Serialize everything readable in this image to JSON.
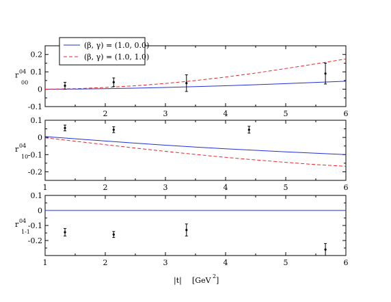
{
  "chart_data": {
    "type": "line",
    "x_axis_label": {
      "main": "|t|",
      "unit_before": "[GeV",
      "unit_sup": "2",
      "unit_after": "]"
    },
    "legend": [
      {
        "label": "(β, γ) = (1.0, 0.0)",
        "color": "#1f2fd6",
        "dash": "solid"
      },
      {
        "label": "(β, γ) = (1.0, 1.0)",
        "color": "#e8262a",
        "dash": "dashed"
      }
    ],
    "panels": [
      {
        "ylabel": {
          "main": "r",
          "sup": "04",
          "sub": "00"
        },
        "xlim": [
          1,
          6
        ],
        "ylim": [
          -0.1,
          0.25
        ],
        "xticks": [
          1,
          2,
          3,
          4,
          5,
          6
        ],
        "xtick_labels": [
          "",
          "2",
          "3",
          "4",
          "5",
          "6"
        ],
        "yticks": [
          -0.1,
          0,
          0.1,
          0.2
        ],
        "ytick_labels": [
          "-0.1",
          "0",
          "0.1",
          "0.2"
        ],
        "series": [
          {
            "color": "#1f2fd6",
            "dash": "solid",
            "x": [
              1,
              1.5,
              2,
              2.5,
              3,
              3.5,
              4,
              4.5,
              5,
              5.5,
              6
            ],
            "y": [
              0,
              0.001,
              0.003,
              0.006,
              0.01,
              0.015,
              0.02,
              0.026,
              0.032,
              0.039,
              0.046
            ]
          },
          {
            "color": "#e8262a",
            "dash": "dashed",
            "x": [
              1,
              1.5,
              2,
              2.5,
              3,
              3.5,
              4,
              4.5,
              5,
              5.5,
              6
            ],
            "y": [
              0,
              0.003,
              0.01,
              0.02,
              0.033,
              0.05,
              0.07,
              0.093,
              0.119,
              0.146,
              0.174
            ]
          }
        ],
        "points": [
          {
            "x": 1.33,
            "y": 0.02,
            "err": 0.02
          },
          {
            "x": 2.14,
            "y": 0.04,
            "err": 0.025
          },
          {
            "x": 3.35,
            "y": 0.035,
            "err": 0.048
          },
          {
            "x": 5.66,
            "y": 0.09,
            "err": 0.06
          }
        ]
      },
      {
        "ylabel": {
          "main": "r",
          "sup": "04",
          "sub": "10"
        },
        "xlim": [
          1,
          6
        ],
        "ylim": [
          -0.25,
          0.1
        ],
        "xticks": [
          1,
          2,
          3,
          4,
          5,
          6
        ],
        "xtick_labels": [
          "1",
          "2",
          "3",
          "4",
          "5",
          "6"
        ],
        "yticks": [
          -0.2,
          -0.1,
          0,
          0.1
        ],
        "ytick_labels": [
          "-0.2",
          "-0.1",
          "0",
          "0.1"
        ],
        "series": [
          {
            "color": "#1f2fd6",
            "dash": "solid",
            "x": [
              1,
              1.5,
              2,
              2.5,
              3,
              3.5,
              4,
              4.5,
              5,
              5.5,
              6
            ],
            "y": [
              0.005,
              -0.008,
              -0.021,
              -0.033,
              -0.045,
              -0.056,
              -0.066,
              -0.075,
              -0.084,
              -0.092,
              -0.1
            ]
          },
          {
            "color": "#e8262a",
            "dash": "dashed",
            "x": [
              1,
              1.5,
              2,
              2.5,
              3,
              3.5,
              4,
              4.5,
              5,
              5.5,
              6
            ],
            "y": [
              -0.002,
              -0.022,
              -0.042,
              -0.062,
              -0.081,
              -0.099,
              -0.116,
              -0.131,
              -0.145,
              -0.158,
              -0.168
            ]
          }
        ],
        "points": [
          {
            "x": 1.33,
            "y": 0.055,
            "err": 0.017
          },
          {
            "x": 2.14,
            "y": 0.045,
            "err": 0.017
          },
          {
            "x": 4.39,
            "y": 0.045,
            "err": 0.02
          }
        ]
      },
      {
        "ylabel": {
          "main": "r",
          "sup": "04",
          "sub": "1-1"
        },
        "xlim": [
          1,
          6
        ],
        "ylim": [
          -0.3,
          0.1
        ],
        "xticks": [
          1,
          2,
          3,
          4,
          5,
          6
        ],
        "xtick_labels": [
          "1",
          "2",
          "3",
          "4",
          "5",
          "6"
        ],
        "yticks": [
          -0.2,
          -0.1,
          0,
          0.1
        ],
        "ytick_labels": [
          "-0.2",
          "-0.1",
          "0",
          "0.1"
        ],
        "series": [
          {
            "color": "#1f2fd6",
            "dash": "solid",
            "x": [
              1,
              6
            ],
            "y": [
              0,
              0
            ]
          }
        ],
        "points": [
          {
            "x": 1.33,
            "y": -0.145,
            "err": 0.025
          },
          {
            "x": 2.14,
            "y": -0.16,
            "err": 0.02
          },
          {
            "x": 3.35,
            "y": -0.13,
            "err": 0.04
          },
          {
            "x": 5.66,
            "y": -0.26,
            "err": 0.04
          }
        ]
      }
    ]
  }
}
